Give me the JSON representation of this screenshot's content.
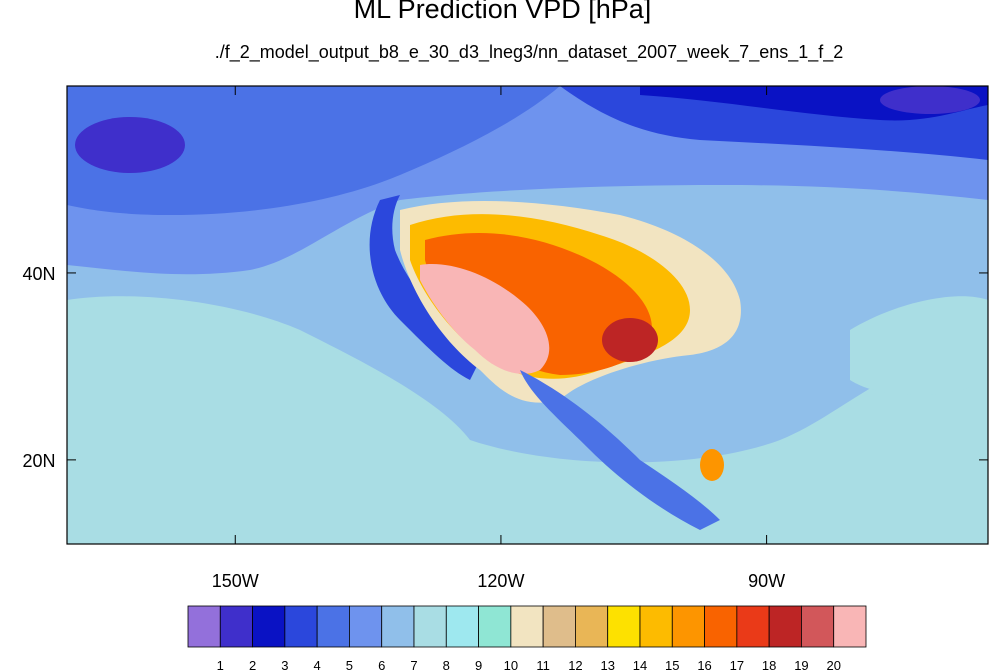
{
  "title": "ML Prediction VPD [hPa]",
  "subtitle": "./f_2_model_output_b8_e_30_d3_lneg3/nn_dataset_2007_week_7_ens_1_f_2",
  "map": {
    "lon_range": [
      -169,
      -65
    ],
    "lat_range": [
      11,
      60
    ],
    "xticks": [
      {
        "lon": -150,
        "label": "150W"
      },
      {
        "lon": -120,
        "label": "120W"
      },
      {
        "lon": -90,
        "label": "90W"
      }
    ],
    "yticks": [
      {
        "lat": 40,
        "label": "40N"
      },
      {
        "lat": 20,
        "label": "20N"
      }
    ]
  },
  "colorbar": {
    "colors": [
      "#9370db",
      "#3f2fcb",
      "#0a12c4",
      "#2b47dc",
      "#4b72e6",
      "#6e93ee",
      "#90bfea",
      "#a9dde4",
      "#9ee8ef",
      "#8fe6d4",
      "#f2e4c1",
      "#dfbd8b",
      "#e9b656",
      "#fde100",
      "#fdbb00",
      "#fd9500",
      "#f96300",
      "#ea3a18",
      "#bd2525",
      "#d2575a",
      "#f9b6b6"
    ],
    "labels": [
      "1",
      "2",
      "3",
      "4",
      "5",
      "6",
      "7",
      "8",
      "9",
      "10",
      "11",
      "12",
      "13",
      "14",
      "15",
      "16",
      "17",
      "18",
      "19",
      "20"
    ]
  }
}
